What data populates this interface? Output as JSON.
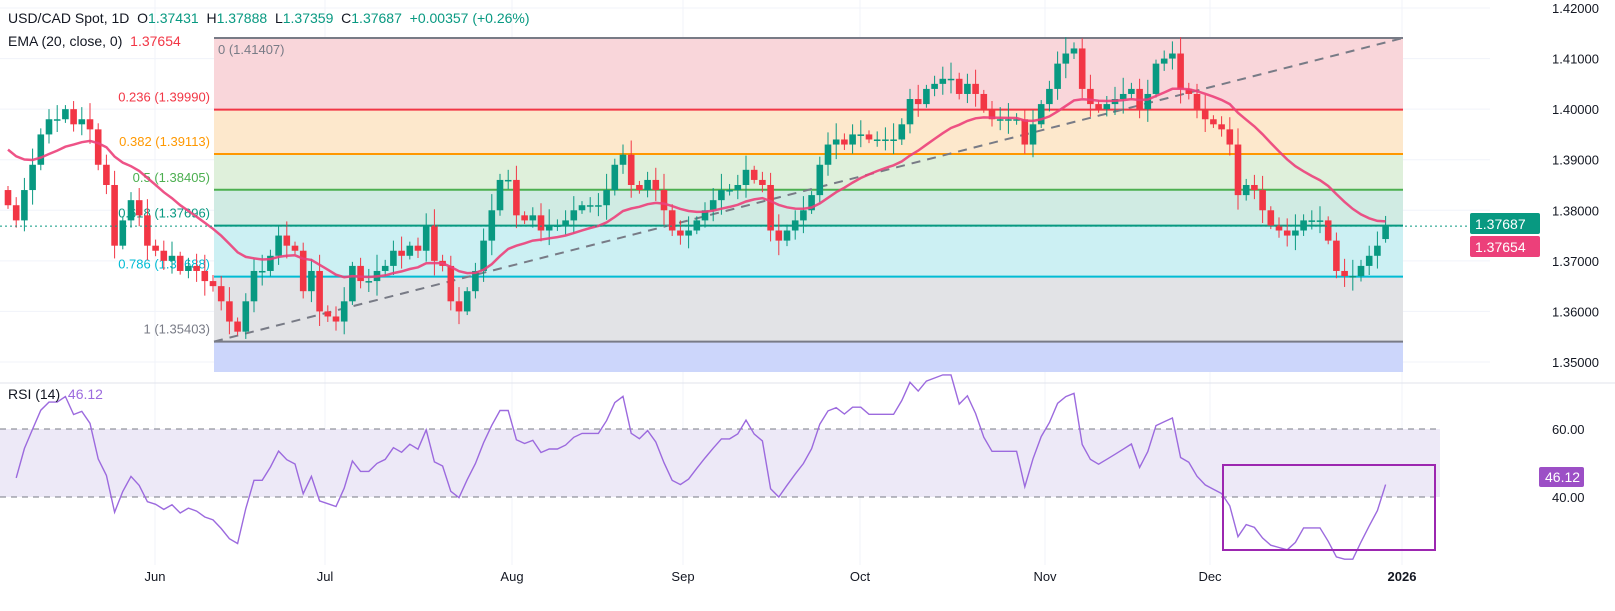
{
  "header": {
    "symbol": "USD/CAD Spot, 1D",
    "o_label": "O",
    "open": "1.37431",
    "h_label": "H",
    "high": "1.37888",
    "l_label": "L",
    "low": "1.37359",
    "c_label": "C",
    "close": "1.37687",
    "change": "+0.00357 (+0.26%)",
    "ema_label": "EMA (20, close, 0)",
    "ema_value": "1.37654"
  },
  "rsi": {
    "label": "RSI (14)",
    "value": "46.12",
    "upper": "60.00",
    "lower": "40.00"
  },
  "price_tags": {
    "last": "1.37687",
    "ema": "1.37654"
  },
  "colors": {
    "up": "#089981",
    "down": "#f23645",
    "ema": "#ec407a",
    "rsi": "#9c6ade",
    "box": "#9c27b0"
  },
  "chart_data": {
    "type": "candlestick",
    "title": "USD/CAD Spot, 1D",
    "y_ticks": [
      "1.42000",
      "1.41000",
      "1.40000",
      "1.39000",
      "1.38000",
      "1.37000",
      "1.36000",
      "1.35000"
    ],
    "ylim": [
      1.35,
      1.42
    ],
    "x_ticks": [
      "Jun",
      "Jul",
      "Aug",
      "Sep",
      "Oct",
      "Nov",
      "Dec",
      "2026"
    ],
    "close": [
      1.381,
      1.378,
      1.384,
      1.389,
      1.395,
      1.398,
      1.398,
      1.4,
      1.397,
      1.398,
      1.396,
      1.389,
      1.385,
      1.373,
      1.378,
      1.382,
      1.379,
      1.373,
      1.372,
      1.37,
      1.371,
      1.368,
      1.369,
      1.368,
      1.366,
      1.365,
      1.362,
      1.358,
      1.356,
      1.362,
      1.368,
      1.368,
      1.371,
      1.375,
      1.373,
      1.372,
      1.364,
      1.368,
      1.36,
      1.359,
      1.358,
      1.362,
      1.369,
      1.366,
      1.366,
      1.368,
      1.369,
      1.372,
      1.371,
      1.373,
      1.372,
      1.377,
      1.37,
      1.369,
      1.362,
      1.36,
      1.364,
      1.368,
      1.374,
      1.38,
      1.386,
      1.386,
      1.379,
      1.378,
      1.379,
      1.376,
      1.377,
      1.377,
      1.378,
      1.38,
      1.381,
      1.381,
      1.381,
      1.384,
      1.389,
      1.391,
      1.385,
      1.384,
      1.386,
      1.384,
      1.38,
      1.376,
      1.375,
      1.376,
      1.378,
      1.38,
      1.382,
      1.384,
      1.384,
      1.385,
      1.388,
      1.386,
      1.385,
      1.376,
      1.374,
      1.376,
      1.378,
      1.38,
      1.383,
      1.389,
      1.393,
      1.394,
      1.393,
      1.395,
      1.395,
      1.394,
      1.394,
      1.394,
      1.394,
      1.397,
      1.402,
      1.401,
      1.404,
      1.405,
      1.406,
      1.406,
      1.403,
      1.405,
      1.403,
      1.4,
      1.398,
      1.398,
      1.398,
      1.398,
      1.393,
      1.397,
      1.401,
      1.404,
      1.409,
      1.411,
      1.412,
      1.404,
      1.401,
      1.4,
      1.401,
      1.402,
      1.403,
      1.404,
      1.4,
      1.403,
      1.409,
      1.41,
      1.411,
      1.404,
      1.403,
      1.4,
      1.398,
      1.397,
      1.396,
      1.393,
      1.383,
      1.385,
      1.384,
      1.38,
      1.377,
      1.376,
      1.375,
      1.376,
      1.378,
      1.378,
      1.378,
      1.374,
      1.368,
      1.367,
      1.367,
      1.369,
      1.371,
      1.373,
      1.37687
    ],
    "last_candle": {
      "open": 1.37431,
      "high": 1.37888,
      "low": 1.37359,
      "close": 1.37687
    },
    "ema_period": 20,
    "rsi_period": 14,
    "rsi_levels": [
      60,
      40
    ],
    "fibonacci": {
      "high": 1.41407,
      "low": 1.35403,
      "levels": [
        {
          "ratio": "0",
          "price": "1.41407",
          "label": "0 (1.41407)",
          "color": "#787b86",
          "fill": "#f9d6da"
        },
        {
          "ratio": "0.236",
          "price": "1.39990",
          "label": "0.236 (1.39990)",
          "color": "#f23645",
          "fill": "#fde8cc"
        },
        {
          "ratio": "0.382",
          "price": "1.39113",
          "label": "0.382 (1.39113)",
          "color": "#ff9800",
          "fill": "#dff0db"
        },
        {
          "ratio": "0.5",
          "price": "1.38405",
          "label": "0.5 (1.38405)",
          "color": "#4caf50",
          "fill": "#d0ebe3"
        },
        {
          "ratio": "0.618",
          "price": "1.37696",
          "label": "0.618 (1.37696)",
          "color": "#089981",
          "fill": "#ccf0f3"
        },
        {
          "ratio": "0.786",
          "price": "1.36688",
          "label": "0.786 (1.36688)",
          "color": "#00bcd4",
          "fill": "#e2e3e6"
        },
        {
          "ratio": "1",
          "price": "1.35403",
          "label": "1 (1.35403)",
          "color": "#787b86",
          "fill": "#ccd6fb"
        }
      ]
    }
  }
}
